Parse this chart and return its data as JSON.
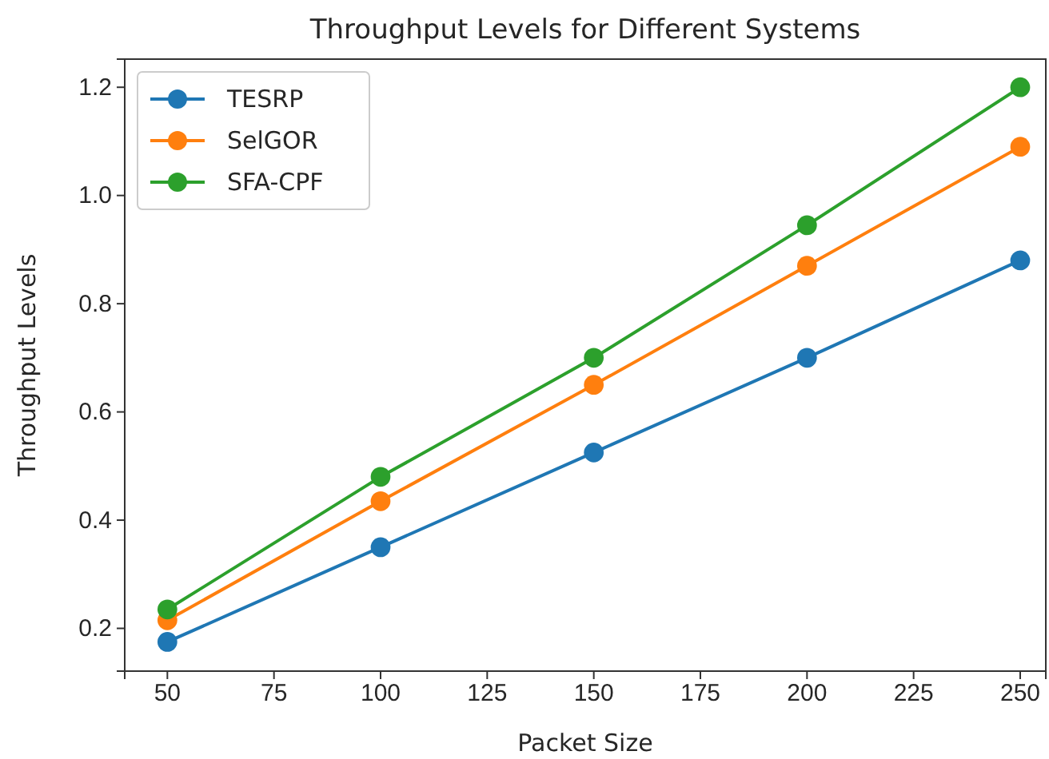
{
  "chart_data": {
    "type": "line",
    "title": "Throughput Levels for Different Systems",
    "xlabel": "Packet Size",
    "ylabel": "Throughput Levels",
    "x": [
      50,
      100,
      150,
      200,
      250
    ],
    "series": [
      {
        "name": "TESRP",
        "color": "#1f77b4",
        "values": [
          0.175,
          0.35,
          0.525,
          0.7,
          0.88
        ]
      },
      {
        "name": "SelGOR",
        "color": "#ff7f0e",
        "values": [
          0.215,
          0.435,
          0.65,
          0.87,
          1.09
        ]
      },
      {
        "name": "SFA-CPF",
        "color": "#2ca02c",
        "values": [
          0.235,
          0.48,
          0.7,
          0.945,
          1.2
        ]
      }
    ],
    "xlim": [
      40,
      256
    ],
    "xticks": [
      50,
      75,
      100,
      125,
      150,
      175,
      200,
      225,
      250
    ],
    "ylim": [
      0.121,
      1.252
    ],
    "yticks": [
      {
        "value": 0.2,
        "label": "0.2"
      },
      {
        "value": 0.4,
        "label": "0.4"
      },
      {
        "value": 0.6,
        "label": "0.6"
      },
      {
        "value": 0.8,
        "label": "0.8"
      },
      {
        "value": 1.0,
        "label": "1.0"
      },
      {
        "value": 1.2,
        "label": "1.2"
      }
    ],
    "grid": false,
    "legend": "top left",
    "marker": "circle",
    "line_style": "solid"
  }
}
